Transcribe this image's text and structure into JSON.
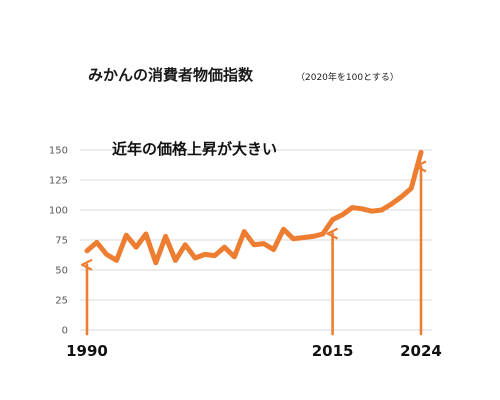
{
  "chart_data": {
    "type": "line",
    "title": "みかんの消費者物価指数",
    "subtitle": "（2020年を100とする）",
    "annotation": "近年の価格上昇が大きい",
    "xlabel": "",
    "ylabel": "",
    "ylim": [
      0,
      150
    ],
    "yticks": [
      "0",
      "25",
      "50",
      "75",
      "100",
      "125",
      "150"
    ],
    "grid": true,
    "x": [
      1990,
      1991,
      1992,
      1993,
      1994,
      1995,
      1996,
      1997,
      1998,
      1999,
      2000,
      2001,
      2002,
      2003,
      2004,
      2005,
      2006,
      2007,
      2008,
      2009,
      2010,
      2011,
      2012,
      2013,
      2014,
      2015,
      2016,
      2017,
      2018,
      2019,
      2020,
      2021,
      2022,
      2023,
      2024
    ],
    "series": [
      {
        "color": "#ed7d31",
        "values": [
          66,
          73,
          63,
          58,
          79,
          69,
          80,
          56,
          78,
          58,
          71,
          60,
          63,
          62,
          69,
          61,
          82,
          71,
          72,
          67,
          84,
          76,
          77,
          78,
          80,
          92,
          96,
          102,
          101,
          99,
          100,
          105,
          111,
          118,
          148
        ]
      }
    ],
    "highlight_years": [
      {
        "label": "1990",
        "x": 1990
      },
      {
        "label": "2015",
        "x": 2015
      },
      {
        "label": "2024",
        "x": 2024
      }
    ],
    "arrow_color": "#ed7d31"
  }
}
